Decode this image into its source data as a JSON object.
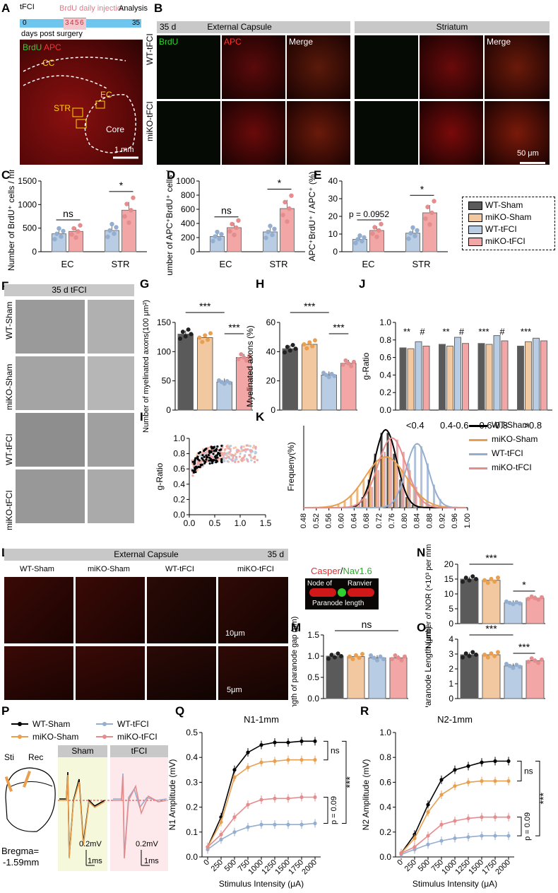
{
  "panel_letters": {
    "A": "A",
    "B": "B",
    "C": "C",
    "D": "D",
    "E": "E",
    "F": "F",
    "G": "G",
    "H": "H",
    "I": "I",
    "J": "J",
    "K": "K",
    "L": "L",
    "M": "M",
    "N": "N",
    "O": "O",
    "P": "P",
    "Q": "Q",
    "R": "R"
  },
  "colors": {
    "wt_sham": "#5a5a5a",
    "miko_sham": "#f2c8a0",
    "wt_tfci": "#b8cce4",
    "miko_tfci": "#f2a6a6",
    "miko_sham_line": "#e8a050",
    "wt_tfci_line": "#94aed0",
    "miko_tfci_line": "#e58c8c",
    "timeline": "#6ec6ee",
    "injection": "#e07a8a"
  },
  "panel_a": {
    "tfci": "tFCI",
    "brdu_injection": "BrdU daily injection",
    "analysis": "Analysis",
    "days": [
      "0",
      "3",
      "4",
      "5",
      "6",
      "35"
    ],
    "days_caption": "days post surgery",
    "brdu": "BrdU",
    "apc": "APC",
    "cc": "CC",
    "ec": "EC",
    "str": "STR",
    "core": "Core",
    "scale": "1 mm"
  },
  "panel_b": {
    "day": "35 d",
    "region_ec": "External Capsule",
    "region_str": "Striatum",
    "col_brdu": "BrdU",
    "col_apc": "APC",
    "col_merge": "Merge",
    "rows": [
      "WT-tFCI",
      "miKO-tFCI"
    ],
    "scale": "50 μm"
  },
  "legend_main": [
    "WT-Sham",
    "miKO-Sham",
    "WT-tFCI",
    "miKO-tFCI"
  ],
  "panel_c": {
    "ylabel": "Number of BrdU⁺ cells / mm²",
    "yticks": [
      "0",
      "500",
      "1000",
      "1500"
    ],
    "groups": [
      "EC",
      "STR"
    ],
    "sig": [
      "ns",
      "*"
    ],
    "chart_data": {
      "type": "bar",
      "categories": [
        "EC",
        "STR"
      ],
      "series": [
        {
          "name": "WT-tFCI",
          "values": [
            380,
            450
          ]
        },
        {
          "name": "miKO-tFCI",
          "values": [
            430,
            880
          ]
        }
      ],
      "ylim": [
        0,
        1500
      ]
    }
  },
  "panel_d": {
    "ylabel": "Number of APC⁺BrdU⁺ cells / mm²",
    "yticks": [
      "0",
      "200",
      "400",
      "600",
      "800",
      "1000"
    ],
    "groups": [
      "EC",
      "STR"
    ],
    "sig": [
      "ns",
      "*"
    ],
    "chart_data": {
      "type": "bar",
      "categories": [
        "EC",
        "STR"
      ],
      "series": [
        {
          "name": "WT-tFCI",
          "values": [
            215,
            280
          ]
        },
        {
          "name": "miKO-tFCI",
          "values": [
            340,
            610
          ]
        }
      ],
      "ylim": [
        0,
        1000
      ]
    }
  },
  "panel_e": {
    "ylabel": "APC⁺BrdU⁺ / APC⁺ (%)",
    "yticks": [
      "0",
      "10",
      "20",
      "30",
      "40"
    ],
    "groups": [
      "EC",
      "STR"
    ],
    "sig": [
      "p = 0.0952",
      "*"
    ],
    "chart_data": {
      "type": "bar",
      "categories": [
        "EC",
        "STR"
      ],
      "series": [
        {
          "name": "WT-tFCI",
          "values": [
            7,
            10.5
          ]
        },
        {
          "name": "miKO-tFCI",
          "values": [
            12,
            22
          ]
        }
      ],
      "ylim": [
        0,
        40
      ]
    }
  },
  "panel_f": {
    "title": "35 d tFCI",
    "rows": [
      "WT-Sham",
      "miKO-Sham",
      "WT-tFCI",
      "miKO-tFCI"
    ]
  },
  "panel_g": {
    "ylabel": "Number of myelinated axons(100 μm²)",
    "yticks": [
      "0",
      "50",
      "100",
      "150"
    ],
    "sig": [
      "***",
      "***"
    ],
    "chart_data": {
      "type": "bar",
      "categories": [
        "WT-Sham",
        "miKO-Sham",
        "WT-tFCI",
        "miKO-tFCI"
      ],
      "values": [
        130,
        124,
        48,
        90
      ],
      "ylim": [
        0,
        150
      ]
    }
  },
  "panel_h": {
    "ylabel": "Myelinated axons (%)",
    "yticks": [
      "0",
      "20",
      "40",
      "60"
    ],
    "sig": [
      "***",
      "***"
    ],
    "chart_data": {
      "type": "bar",
      "categories": [
        "WT-Sham",
        "miKO-Sham",
        "WT-tFCI",
        "miKO-tFCI"
      ],
      "values": [
        42,
        45,
        24,
        32
      ],
      "ylim": [
        0,
        60
      ]
    }
  },
  "panel_i": {
    "ylabel": "g-Ratio",
    "yticks": [
      "0.0",
      "0.2",
      "0.4",
      "0.6",
      "0.8",
      "1.0"
    ],
    "xticks": [
      "0.0",
      "0.5",
      "1.0",
      "1.5"
    ]
  },
  "panel_j": {
    "ylabel": "g-Ratio",
    "yticks": [
      "0.0",
      "0.2",
      "0.4",
      "0.6",
      "0.8",
      "1.0"
    ],
    "groups": [
      "<0.4",
      "0.4-0.6",
      "0.6-0.8",
      ">0.8"
    ],
    "sig": [
      "**",
      "#",
      "**",
      "#",
      "***",
      "#",
      "***"
    ],
    "chart_data": {
      "type": "bar",
      "categories": [
        "<0.4",
        "0.4-0.6",
        "0.6-0.8",
        ">0.8"
      ],
      "series": [
        {
          "name": "WT-Sham",
          "values": [
            0.71,
            0.75,
            0.76,
            0.73
          ]
        },
        {
          "name": "miKO-Sham",
          "values": [
            0.7,
            0.73,
            0.75,
            0.78
          ]
        },
        {
          "name": "WT-tFCI",
          "values": [
            0.78,
            0.83,
            0.85,
            0.82
          ]
        },
        {
          "name": "miKO-tFCI",
          "values": [
            0.73,
            0.76,
            0.79,
            0.79
          ]
        }
      ],
      "ylim": [
        0,
        1
      ]
    }
  },
  "panel_k": {
    "ylabel": "Frequeny(%)",
    "xticks": [
      "0.48",
      "0.52",
      "0.56",
      "0.60",
      "0.64",
      "0.68",
      "0.72",
      "0.76",
      "0.80",
      "0.84",
      "0.88",
      "0.92",
      "0.96",
      "1.00"
    ],
    "legend": [
      "WT-Sham",
      "miKO-Sham",
      "WT-tFCI",
      "miKO-tFCI"
    ]
  },
  "panel_l": {
    "title": "External Capsule",
    "day": "35 d",
    "cols": [
      "WT-Sham",
      "miKO-Sham",
      "WT-tFCI",
      "miKO-tFCI"
    ],
    "scale_top": "10μm",
    "scale_bottom": "5μm"
  },
  "node_schematic": {
    "casper": "Casper",
    "nav": "Nav1.6",
    "node_of": "Node of",
    "ranvier": "Ranvier",
    "paranode": "Paranode length"
  },
  "panel_m": {
    "ylabel": "Length of paranode gap (μm)",
    "yticks": [
      "0.0",
      "0.5",
      "1.0",
      "1.5"
    ],
    "sig": "ns",
    "chart_data": {
      "type": "bar",
      "categories": [
        "WT-Sham",
        "miKO-Sham",
        "WT-tFCI",
        "miKO-tFCI"
      ],
      "values": [
        1.0,
        0.99,
        0.96,
        0.96
      ],
      "ylim": [
        0,
        1.5
      ]
    }
  },
  "panel_n": {
    "ylabel": "Number of NOR (×10³ per mm²)",
    "yticks": [
      "0",
      "5",
      "10",
      "15",
      "20"
    ],
    "sig": [
      "***",
      "*"
    ],
    "chart_data": {
      "type": "bar",
      "categories": [
        "WT-Sham",
        "miKO-Sham",
        "WT-tFCI",
        "miKO-tFCI"
      ],
      "values": [
        15,
        14.6,
        7,
        8.6
      ],
      "ylim": [
        0,
        20
      ]
    }
  },
  "panel_o": {
    "ylabel": "Paranode Length (μm)",
    "yticks": [
      "0",
      "1",
      "2",
      "3",
      "4"
    ],
    "sig": [
      "***",
      "***"
    ],
    "chart_data": {
      "type": "bar",
      "categories": [
        "WT-Sham",
        "miKO-Sham",
        "WT-tFCI",
        "miKO-tFCI"
      ],
      "values": [
        2.95,
        2.95,
        2.2,
        2.55
      ],
      "ylim": [
        0,
        4
      ]
    }
  },
  "panel_p": {
    "legend": [
      "WT-Sham",
      "miKO-Sham",
      "WT-tFCI",
      "miKO-tFCI"
    ],
    "sti": "Sti",
    "rec": "Rec",
    "bregma": "Bregma=",
    "bregma_val": "-1.59mm",
    "sham": "Sham",
    "tfci": "tFCI",
    "scale_v": "0.2mV",
    "scale_t": "1ms"
  },
  "panel_q": {
    "title": "N1-1mm",
    "ylabel": "N1 Amplitude (mV)",
    "xlabel": "Stimulus Intensity (μA)",
    "yticks": [
      "0.0",
      "0.1",
      "0.2",
      "0.3",
      "0.4",
      "0.5"
    ],
    "xticks": [
      "0",
      "250",
      "500",
      "750",
      "1000",
      "1250",
      "1500",
      "1750",
      "2000"
    ],
    "sig": [
      "ns",
      "p = 0.09",
      "***"
    ],
    "chart_data": {
      "type": "line",
      "x": [
        0,
        250,
        500,
        750,
        1000,
        1250,
        1500,
        1750,
        2000
      ],
      "series": [
        {
          "name": "WT-Sham",
          "values": [
            0.04,
            0.16,
            0.35,
            0.42,
            0.45,
            0.46,
            0.46,
            0.465,
            0.465
          ]
        },
        {
          "name": "miKO-Sham",
          "values": [
            0.04,
            0.14,
            0.32,
            0.36,
            0.38,
            0.385,
            0.39,
            0.39,
            0.39
          ]
        },
        {
          "name": "WT-tFCI",
          "values": [
            0.03,
            0.07,
            0.1,
            0.12,
            0.13,
            0.13,
            0.13,
            0.13,
            0.135
          ]
        },
        {
          "name": "miKO-tFCI",
          "values": [
            0.04,
            0.09,
            0.16,
            0.21,
            0.23,
            0.235,
            0.235,
            0.24,
            0.24
          ]
        }
      ],
      "ylim": [
        0,
        0.5
      ]
    }
  },
  "panel_r": {
    "title": "N2-1mm",
    "ylabel": "N2 Amplitude (mV)",
    "xlabel": "Stimulus Intensity (μA)",
    "yticks": [
      "0.0",
      "0.2",
      "0.4",
      "0.6",
      "0.8",
      "1.0"
    ],
    "xticks": [
      "0",
      "250",
      "500",
      "750",
      "1000",
      "1250",
      "1500",
      "1750",
      "2000"
    ],
    "sig": [
      "ns",
      "p = 0.09",
      "***"
    ],
    "chart_data": {
      "type": "line",
      "x": [
        0,
        250,
        500,
        750,
        1000,
        1250,
        1500,
        1750,
        2000
      ],
      "series": [
        {
          "name": "WT-Sham",
          "values": [
            0.03,
            0.18,
            0.42,
            0.62,
            0.7,
            0.73,
            0.76,
            0.77,
            0.77
          ]
        },
        {
          "name": "miKO-Sham",
          "values": [
            0.03,
            0.15,
            0.36,
            0.5,
            0.57,
            0.6,
            0.61,
            0.61,
            0.61
          ]
        },
        {
          "name": "WT-tFCI",
          "values": [
            0.02,
            0.06,
            0.1,
            0.13,
            0.15,
            0.16,
            0.17,
            0.17,
            0.17
          ]
        },
        {
          "name": "miKO-tFCI",
          "values": [
            0.03,
            0.08,
            0.17,
            0.26,
            0.29,
            0.31,
            0.32,
            0.32,
            0.32
          ]
        }
      ],
      "ylim": [
        0,
        1.0
      ]
    }
  }
}
